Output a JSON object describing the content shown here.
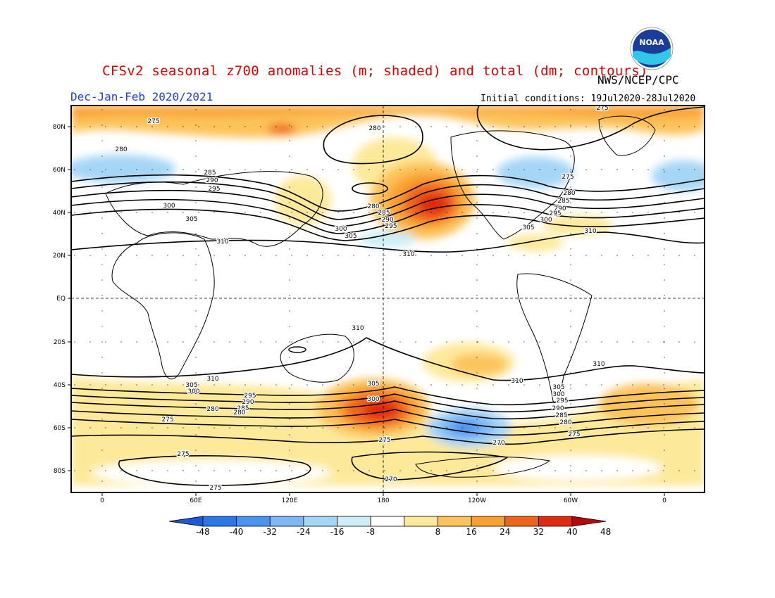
{
  "title": "CFSv2 seasonal z700 anomalies (m; shaded) and total (dm; contours)",
  "period": "Dec-Jan-Feb 2020/2021",
  "agency": "NWS/NCEP/CPC",
  "initial_conditions": "Initial conditions: 19Jul2020-28Jul2020",
  "logo_text": "NOAA",
  "map": {
    "lat_labels": [
      "80N",
      "60N",
      "40N",
      "20N",
      "EQ",
      "20S",
      "40S",
      "60S",
      "80S"
    ],
    "lon_labels": [
      "0",
      "60E",
      "120E",
      "180",
      "120W",
      "60W",
      "0"
    ]
  },
  "contour_labels": [
    "275",
    "280",
    "285",
    "290",
    "295",
    "300",
    "305",
    "310",
    "270"
  ],
  "colorbar": {
    "ticks": [
      "-48",
      "-40",
      "-32",
      "-24",
      "-16",
      "-8",
      "8",
      "16",
      "24",
      "32",
      "40",
      "48"
    ],
    "colors": [
      "#1a5ad8",
      "#2a78e8",
      "#4a94f0",
      "#7eb8f4",
      "#a6d6f6",
      "#cdeef6",
      "#ffffff",
      "#fde99a",
      "#fcc35a",
      "#f9a030",
      "#f0641a",
      "#e02a10",
      "#b40a0a"
    ]
  }
}
